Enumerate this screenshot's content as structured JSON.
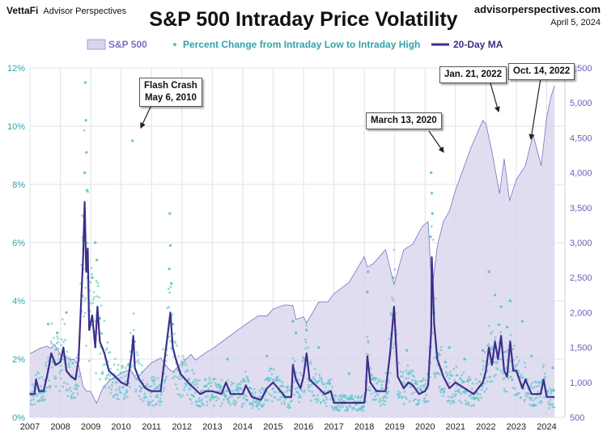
{
  "header": {
    "logo": "VettaFi",
    "brand_sub": "Advisor Perspectives",
    "site": "advisorperspectives.com",
    "date": "April 5, 2024"
  },
  "chart_data": {
    "type": "line",
    "title": "S&P 500 Intraday Price Volatility",
    "legend": {
      "placement": "top",
      "items": [
        "S&P 500",
        "Percent Change from Intraday Low to Intraday High",
        "20-Day MA"
      ]
    },
    "grid": true,
    "x_axis": {
      "range": [
        2007,
        2024.6
      ],
      "tick_labels": [
        "2007",
        "2008",
        "2009",
        "2010",
        "2011",
        "2012",
        "2013",
        "2014",
        "2015",
        "2016",
        "2017",
        "2018",
        "2019",
        "2020",
        "2021",
        "2022",
        "2023",
        "2024"
      ]
    },
    "y_left": {
      "range": [
        0,
        12
      ],
      "tick_labels": [
        "0%",
        "2%",
        "4%",
        "6%",
        "8%",
        "10%",
        "12%"
      ]
    },
    "y_right": {
      "range": [
        500,
        5500
      ],
      "tick_labels": [
        "500",
        "1,000",
        "1,500",
        "2,000",
        "2,500",
        "3,000",
        "3,500",
        "4,000",
        "4,500",
        "5,000",
        "5,500"
      ]
    },
    "colors": {
      "spx_fill": "#d9d4ee",
      "spx_line": "#7b6fc4",
      "dots": "#4fc3c6",
      "ma": "#3d2f8c",
      "left_axis": "#33a3a8",
      "right_axis": "#6a5fb8"
    },
    "series": [
      {
        "name": "S&P 500",
        "axis": "right",
        "x": [
          2007.0,
          2007.3,
          2007.55,
          2007.7,
          2007.8,
          2008.0,
          2008.3,
          2008.45,
          2008.6,
          2008.75,
          2008.85,
          2009.0,
          2009.1,
          2009.19,
          2009.4,
          2009.6,
          2009.8,
          2010.0,
          2010.3,
          2010.5,
          2010.7,
          2011.0,
          2011.3,
          2011.55,
          2011.7,
          2011.9,
          2012.3,
          2012.45,
          2012.8,
          2013.0,
          2013.5,
          2014.0,
          2014.5,
          2014.8,
          2015.0,
          2015.4,
          2015.65,
          2015.75,
          2016.0,
          2016.1,
          2016.5,
          2016.8,
          2017.0,
          2017.5,
          2018.0,
          2018.1,
          2018.3,
          2018.7,
          2018.98,
          2019.3,
          2019.6,
          2019.9,
          2020.1,
          2020.2,
          2020.22,
          2020.4,
          2020.6,
          2020.8,
          2021.0,
          2021.5,
          2021.9,
          2022.0,
          2022.2,
          2022.45,
          2022.6,
          2022.78,
          2023.0,
          2023.3,
          2023.55,
          2023.82,
          2024.0,
          2024.15,
          2024.26
        ],
        "y": [
          1410,
          1480,
          1520,
          1490,
          1550,
          1400,
          1330,
          1330,
          1250,
          940,
          880,
          870,
          780,
          700,
          920,
          1020,
          1080,
          1130,
          1190,
          1040,
          1150,
          1280,
          1350,
          1200,
          1150,
          1240,
          1400,
          1320,
          1430,
          1480,
          1640,
          1800,
          1950,
          1950,
          2050,
          2110,
          2100,
          1900,
          1940,
          1850,
          2150,
          2150,
          2270,
          2430,
          2800,
          2650,
          2700,
          2900,
          2400,
          2900,
          2980,
          3230,
          3300,
          2500,
          2300,
          2950,
          3300,
          3450,
          3750,
          4350,
          4750,
          4700,
          4300,
          3700,
          4200,
          3600,
          3900,
          4100,
          4550,
          4100,
          4800,
          5100,
          5250
        ]
      },
      {
        "name": "20-Day MA",
        "axis": "left",
        "x": [
          2007.0,
          2007.15,
          2007.2,
          2007.3,
          2007.45,
          2007.6,
          2007.7,
          2007.85,
          2008.0,
          2008.1,
          2008.2,
          2008.35,
          2008.5,
          2008.6,
          2008.75,
          2008.8,
          2008.85,
          2008.9,
          2008.95,
          2009.05,
          2009.15,
          2009.22,
          2009.3,
          2009.45,
          2009.6,
          2009.8,
          2010.0,
          2010.2,
          2010.35,
          2010.4,
          2010.45,
          2010.6,
          2010.8,
          2011.0,
          2011.3,
          2011.55,
          2011.62,
          2011.7,
          2011.8,
          2011.95,
          2012.2,
          2012.4,
          2012.6,
          2012.8,
          2013.0,
          2013.3,
          2013.45,
          2013.6,
          2014.0,
          2014.1,
          2014.3,
          2014.6,
          2014.8,
          2015.0,
          2015.4,
          2015.6,
          2015.65,
          2015.75,
          2015.9,
          2016.0,
          2016.1,
          2016.2,
          2016.5,
          2016.7,
          2016.9,
          2017.0,
          2017.5,
          2018.0,
          2018.05,
          2018.1,
          2018.2,
          2018.4,
          2018.7,
          2018.85,
          2018.98,
          2019.1,
          2019.3,
          2019.45,
          2019.6,
          2019.8,
          2020.0,
          2020.1,
          2020.2,
          2020.22,
          2020.3,
          2020.4,
          2020.6,
          2020.8,
          2021.0,
          2021.3,
          2021.6,
          2021.9,
          2022.0,
          2022.1,
          2022.2,
          2022.3,
          2022.4,
          2022.5,
          2022.6,
          2022.7,
          2022.8,
          2022.9,
          2023.0,
          2023.2,
          2023.3,
          2023.5,
          2023.8,
          2023.9,
          2024.0,
          2024.26
        ],
        "y": [
          0.8,
          0.8,
          1.3,
          0.9,
          0.9,
          1.6,
          2.2,
          1.8,
          1.9,
          2.4,
          1.6,
          1.4,
          1.3,
          2.0,
          5.5,
          7.4,
          5.0,
          5.8,
          3.0,
          3.5,
          2.4,
          3.8,
          2.6,
          2.2,
          1.6,
          1.4,
          1.2,
          1.1,
          2.2,
          2.8,
          1.7,
          1.3,
          1.0,
          0.9,
          0.9,
          3.0,
          3.6,
          2.4,
          2.0,
          1.5,
          1.2,
          1.0,
          0.8,
          0.9,
          0.9,
          0.8,
          1.2,
          0.8,
          0.8,
          1.1,
          0.7,
          0.6,
          1.0,
          1.2,
          0.7,
          0.7,
          1.8,
          1.3,
          1.0,
          1.4,
          2.2,
          1.3,
          1.0,
          0.8,
          0.9,
          0.5,
          0.5,
          0.5,
          0.9,
          2.1,
          1.2,
          0.9,
          0.9,
          2.2,
          3.8,
          1.4,
          1.0,
          1.2,
          1.1,
          0.8,
          0.9,
          1.1,
          3.0,
          5.5,
          3.2,
          2.0,
          1.4,
          1.0,
          1.2,
          1.0,
          0.8,
          1.2,
          1.6,
          2.4,
          1.8,
          2.6,
          2.0,
          2.8,
          1.6,
          1.4,
          2.6,
          1.6,
          1.6,
          1.0,
          1.3,
          0.8,
          0.8,
          1.3,
          0.7,
          0.7
        ]
      },
      {
        "name": "Percent Change from Intraday Low to Intraday High",
        "axis": "left",
        "display": "scatter",
        "x": [
          2008.82,
          2008.84,
          2008.86,
          2008.8,
          2008.78,
          2008.88,
          2009.15,
          2009.2,
          2010.37,
          2011.6,
          2011.62,
          2011.65,
          2011.58,
          2020.2,
          2020.22,
          2020.24,
          2020.18,
          2018.1,
          2018.12,
          2018.95,
          2015.65,
          2016.1,
          2022.1,
          2022.3,
          2022.5,
          2022.8,
          2023.2,
          2007.6,
          2007.9,
          2008.2,
          2008.7,
          2009.05,
          2009.3,
          2010.45,
          2011.7,
          2013.5,
          2014.8,
          2015.75,
          2016.5,
          2017.5,
          2019.4,
          2020.3,
          2020.8,
          2021.3,
          2021.9,
          2022.7,
          2023.5,
          2024.2
        ],
        "y": [
          11.5,
          10.2,
          9.1,
          8.4,
          6.9,
          7.8,
          6.0,
          5.4,
          9.5,
          7.0,
          5.9,
          4.6,
          5.1,
          8.4,
          7.7,
          7.0,
          6.2,
          4.3,
          5.0,
          4.8,
          3.3,
          3.0,
          5.0,
          4.2,
          3.8,
          4.0,
          3.3,
          3.2,
          2.9,
          3.6,
          4.2,
          4.8,
          3.4,
          2.6,
          3.2,
          2.0,
          2.1,
          2.9,
          2.4,
          1.5,
          2.3,
          3.6,
          2.4,
          2.0,
          2.3,
          3.1,
          2.1,
          1.7
        ]
      }
    ],
    "annotations": [
      {
        "text": "Flash Crash\nMay 6, 2010",
        "x": 2010.35,
        "y": 9.6
      },
      {
        "text": "March 13, 2020",
        "x": 2020.2,
        "y": 9.1
      },
      {
        "text": "Jan. 21, 2022",
        "x": 2022.1,
        "y": 10.3
      },
      {
        "text": "Oct. 14, 2022",
        "x": 2022.8,
        "y": 9.5
      }
    ]
  }
}
